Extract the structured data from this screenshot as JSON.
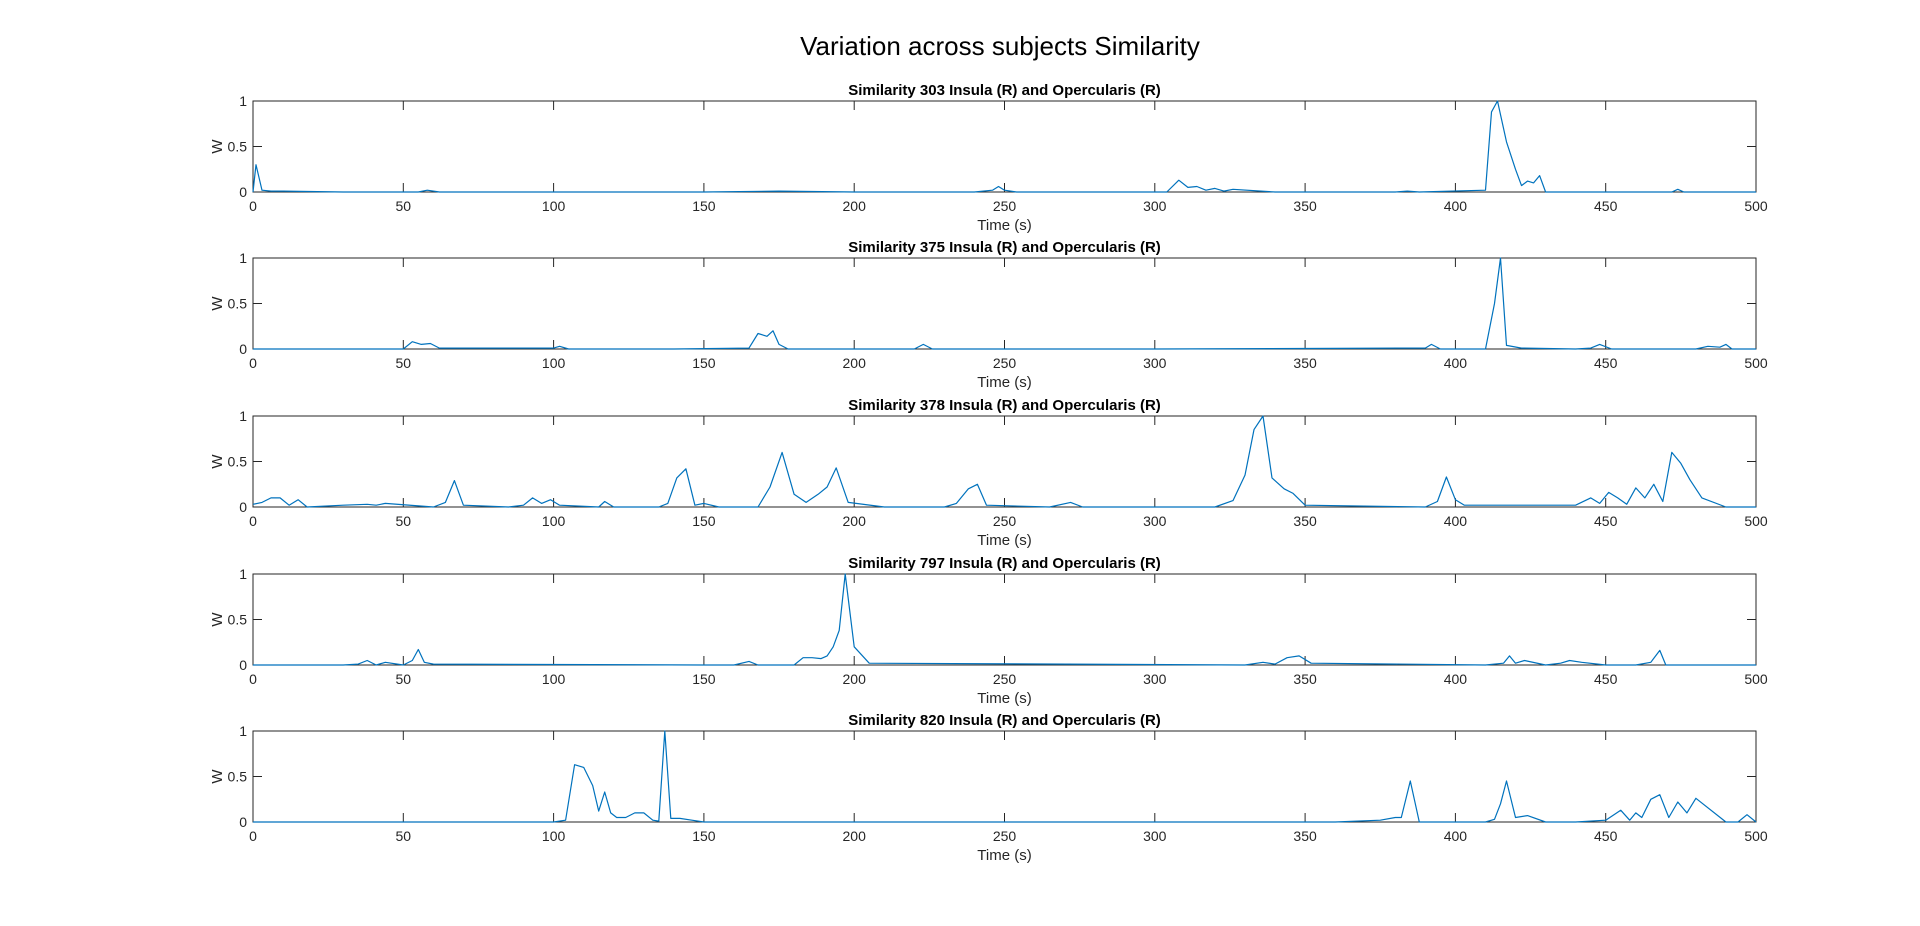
{
  "figure": {
    "title": "Variation across subjects Similarity"
  },
  "chart_data": [
    {
      "type": "line",
      "title": "Similarity 303 Insula (R) and Opercularis (R)",
      "xlabel": "Time (s)",
      "ylabel": "W",
      "xlim": [
        0,
        500
      ],
      "ylim": [
        0,
        1
      ],
      "xticks": [
        0,
        50,
        100,
        150,
        200,
        250,
        300,
        350,
        400,
        450,
        500
      ],
      "yticks": [
        0,
        0.5,
        1
      ],
      "color": "#0072BD",
      "x": [
        0,
        1,
        3,
        6,
        10,
        30,
        55,
        58,
        62,
        100,
        150,
        175,
        200,
        240,
        246,
        248,
        250,
        254,
        290,
        304,
        308,
        311,
        314,
        317,
        320,
        323,
        326,
        340,
        380,
        384,
        388,
        410,
        412,
        414,
        417,
        420,
        422,
        424,
        426,
        428,
        430,
        460,
        472,
        474,
        476,
        500
      ],
      "y": [
        0,
        0.3,
        0.02,
        0.01,
        0.01,
        0.0,
        0.0,
        0.02,
        0.0,
        0.0,
        0.0,
        0.01,
        0.0,
        0.0,
        0.02,
        0.06,
        0.02,
        0.0,
        0.0,
        0.0,
        0.13,
        0.05,
        0.06,
        0.02,
        0.04,
        0.01,
        0.03,
        0.0,
        0.0,
        0.01,
        0.0,
        0.02,
        0.88,
        1.0,
        0.55,
        0.25,
        0.07,
        0.12,
        0.1,
        0.18,
        0.0,
        0.0,
        0.0,
        0.03,
        0.0,
        0.0
      ]
    },
    {
      "type": "line",
      "title": "Similarity 375 Insula (R) and Opercularis (R)",
      "xlabel": "Time (s)",
      "ylabel": "W",
      "xlim": [
        0,
        500
      ],
      "ylim": [
        0,
        1
      ],
      "xticks": [
        0,
        50,
        100,
        150,
        200,
        250,
        300,
        350,
        400,
        450,
        500
      ],
      "yticks": [
        0,
        0.5,
        1
      ],
      "color": "#0072BD",
      "x": [
        0,
        50,
        53,
        56,
        59,
        62,
        100,
        102,
        105,
        140,
        165,
        168,
        171,
        173,
        175,
        178,
        220,
        223,
        226,
        300,
        385,
        390,
        392,
        395,
        410,
        413,
        415,
        417,
        422,
        440,
        445,
        448,
        452,
        480,
        484,
        488,
        490,
        492,
        500
      ],
      "y": [
        0,
        0.0,
        0.08,
        0.05,
        0.06,
        0.01,
        0.01,
        0.03,
        0.0,
        0.0,
        0.01,
        0.17,
        0.14,
        0.2,
        0.05,
        0.0,
        0.0,
        0.05,
        0.0,
        0.0,
        0.01,
        0.01,
        0.05,
        0.0,
        0.0,
        0.5,
        1.0,
        0.04,
        0.01,
        0.0,
        0.01,
        0.05,
        0.0,
        0.0,
        0.03,
        0.02,
        0.05,
        0.0,
        0.0
      ]
    },
    {
      "type": "line",
      "title": "Similarity 378 Insula (R) and Opercularis (R)",
      "xlabel": "Time (s)",
      "ylabel": "W",
      "xlim": [
        0,
        500
      ],
      "ylim": [
        0,
        1
      ],
      "xticks": [
        0,
        50,
        100,
        150,
        200,
        250,
        300,
        350,
        400,
        450,
        500
      ],
      "yticks": [
        0,
        0.5,
        1
      ],
      "color": "#0072BD",
      "x": [
        0,
        3,
        6,
        9,
        12,
        15,
        18,
        30,
        38,
        41,
        44,
        60,
        64,
        67,
        70,
        85,
        90,
        93,
        96,
        99,
        102,
        115,
        117,
        120,
        135,
        138,
        141,
        144,
        147,
        150,
        155,
        168,
        172,
        176,
        180,
        184,
        188,
        191,
        194,
        198,
        210,
        230,
        234,
        238,
        241,
        244,
        265,
        272,
        276,
        320,
        326,
        330,
        333,
        336,
        339,
        343,
        346,
        350,
        390,
        394,
        397,
        400,
        403,
        440,
        445,
        448,
        451,
        454,
        457,
        460,
        463,
        466,
        469,
        472,
        475,
        478,
        482,
        490,
        500
      ],
      "y": [
        0.03,
        0.05,
        0.1,
        0.1,
        0.02,
        0.08,
        0.0,
        0.02,
        0.03,
        0.02,
        0.04,
        0.0,
        0.05,
        0.29,
        0.02,
        0.0,
        0.02,
        0.1,
        0.04,
        0.08,
        0.02,
        0.0,
        0.06,
        0.0,
        0.0,
        0.04,
        0.32,
        0.42,
        0.02,
        0.04,
        0.0,
        0.0,
        0.22,
        0.6,
        0.14,
        0.05,
        0.14,
        0.22,
        0.43,
        0.05,
        0.0,
        0.0,
        0.04,
        0.2,
        0.25,
        0.02,
        0.0,
        0.05,
        0.0,
        0.0,
        0.07,
        0.35,
        0.85,
        1.0,
        0.32,
        0.2,
        0.15,
        0.02,
        0.0,
        0.06,
        0.33,
        0.08,
        0.02,
        0.02,
        0.1,
        0.04,
        0.16,
        0.1,
        0.03,
        0.21,
        0.1,
        0.25,
        0.06,
        0.6,
        0.48,
        0.3,
        0.1,
        0.0,
        0.0
      ]
    },
    {
      "type": "line",
      "title": "Similarity 797 Insula (R) and Opercularis (R)",
      "xlabel": "Time (s)",
      "ylabel": "W",
      "xlim": [
        0,
        500
      ],
      "ylim": [
        0,
        1
      ],
      "xticks": [
        0,
        50,
        100,
        150,
        200,
        250,
        300,
        350,
        400,
        450,
        500
      ],
      "yticks": [
        0,
        0.5,
        1
      ],
      "color": "#0072BD",
      "x": [
        0,
        30,
        35,
        38,
        41,
        44,
        50,
        53,
        55,
        57,
        60,
        150,
        160,
        165,
        168,
        180,
        183,
        186,
        189,
        191,
        193,
        195,
        197,
        200,
        205,
        330,
        336,
        340,
        344,
        348,
        352,
        410,
        416,
        418,
        420,
        423,
        430,
        435,
        438,
        442,
        450,
        460,
        465,
        468,
        470,
        500
      ],
      "y": [
        0,
        0.0,
        0.01,
        0.05,
        0.0,
        0.03,
        0.0,
        0.05,
        0.17,
        0.03,
        0.01,
        0.0,
        0.0,
        0.04,
        0.0,
        0.0,
        0.08,
        0.08,
        0.07,
        0.1,
        0.2,
        0.38,
        1.0,
        0.2,
        0.02,
        0.0,
        0.03,
        0.01,
        0.08,
        0.1,
        0.02,
        0.0,
        0.02,
        0.1,
        0.02,
        0.05,
        0.0,
        0.02,
        0.05,
        0.03,
        0.0,
        0.0,
        0.03,
        0.16,
        0.0,
        0.0
      ]
    },
    {
      "type": "line",
      "title": "Similarity 820 Insula (R) and Opercularis (R)",
      "xlabel": "Time (s)",
      "ylabel": "W",
      "xlim": [
        0,
        500
      ],
      "ylim": [
        0,
        1
      ],
      "xticks": [
        0,
        50,
        100,
        150,
        200,
        250,
        300,
        350,
        400,
        450,
        500
      ],
      "yticks": [
        0,
        0.5,
        1
      ],
      "color": "#0072BD",
      "x": [
        0,
        100,
        104,
        107,
        110,
        113,
        115,
        117,
        119,
        121,
        124,
        127,
        130,
        133,
        135,
        137,
        139,
        142,
        146,
        150,
        360,
        375,
        380,
        382,
        385,
        388,
        410,
        413,
        415,
        417,
        420,
        424,
        430,
        440,
        450,
        455,
        458,
        460,
        462,
        465,
        468,
        471,
        474,
        477,
        480,
        490,
        494,
        497,
        500
      ],
      "y": [
        0,
        0.0,
        0.02,
        0.63,
        0.6,
        0.4,
        0.12,
        0.33,
        0.1,
        0.05,
        0.05,
        0.1,
        0.1,
        0.02,
        0.01,
        1.0,
        0.04,
        0.04,
        0.02,
        0.0,
        0.0,
        0.02,
        0.05,
        0.05,
        0.45,
        0.0,
        0.0,
        0.03,
        0.2,
        0.45,
        0.05,
        0.07,
        0.0,
        0.0,
        0.02,
        0.13,
        0.02,
        0.1,
        0.05,
        0.25,
        0.3,
        0.05,
        0.22,
        0.1,
        0.26,
        0.0,
        0.0,
        0.08,
        0.0
      ]
    }
  ]
}
